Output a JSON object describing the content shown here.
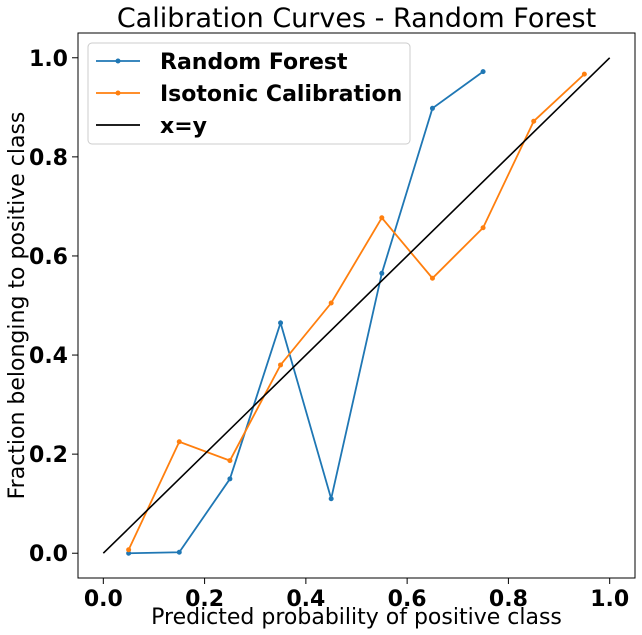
{
  "chart_data": {
    "type": "line",
    "title": "Calibration Curves - Random Forest",
    "xlabel": "Predicted probability of positive class",
    "ylabel": "Fraction belonging to positive class",
    "xlim": [
      -0.05,
      1.05
    ],
    "ylim": [
      -0.05,
      1.05
    ],
    "xticks": [
      "0.0",
      "0.2",
      "0.4",
      "0.6",
      "0.8",
      "1.0"
    ],
    "yticks": [
      "0.0",
      "0.2",
      "0.4",
      "0.6",
      "0.8",
      "1.0"
    ],
    "grid": false,
    "legend_position": "top-left",
    "series": [
      {
        "name": "Random Forest",
        "color": "#1f77b4",
        "marker": "dot",
        "x": [
          0.05,
          0.15,
          0.25,
          0.35,
          0.45,
          0.55,
          0.65,
          0.75
        ],
        "y": [
          0.0,
          0.002,
          0.15,
          0.465,
          0.11,
          0.565,
          0.898,
          0.972
        ]
      },
      {
        "name": "Isotonic Calibration",
        "color": "#ff7f0e",
        "marker": "dot",
        "x": [
          0.05,
          0.15,
          0.25,
          0.35,
          0.45,
          0.55,
          0.65,
          0.75,
          0.85,
          0.95
        ],
        "y": [
          0.007,
          0.225,
          0.187,
          0.38,
          0.505,
          0.677,
          0.555,
          0.657,
          0.872,
          0.967
        ]
      },
      {
        "name": "x=y",
        "color": "#000000",
        "marker": "none",
        "x": [
          0.0,
          1.0
        ],
        "y": [
          0.0,
          1.0
        ]
      }
    ]
  }
}
